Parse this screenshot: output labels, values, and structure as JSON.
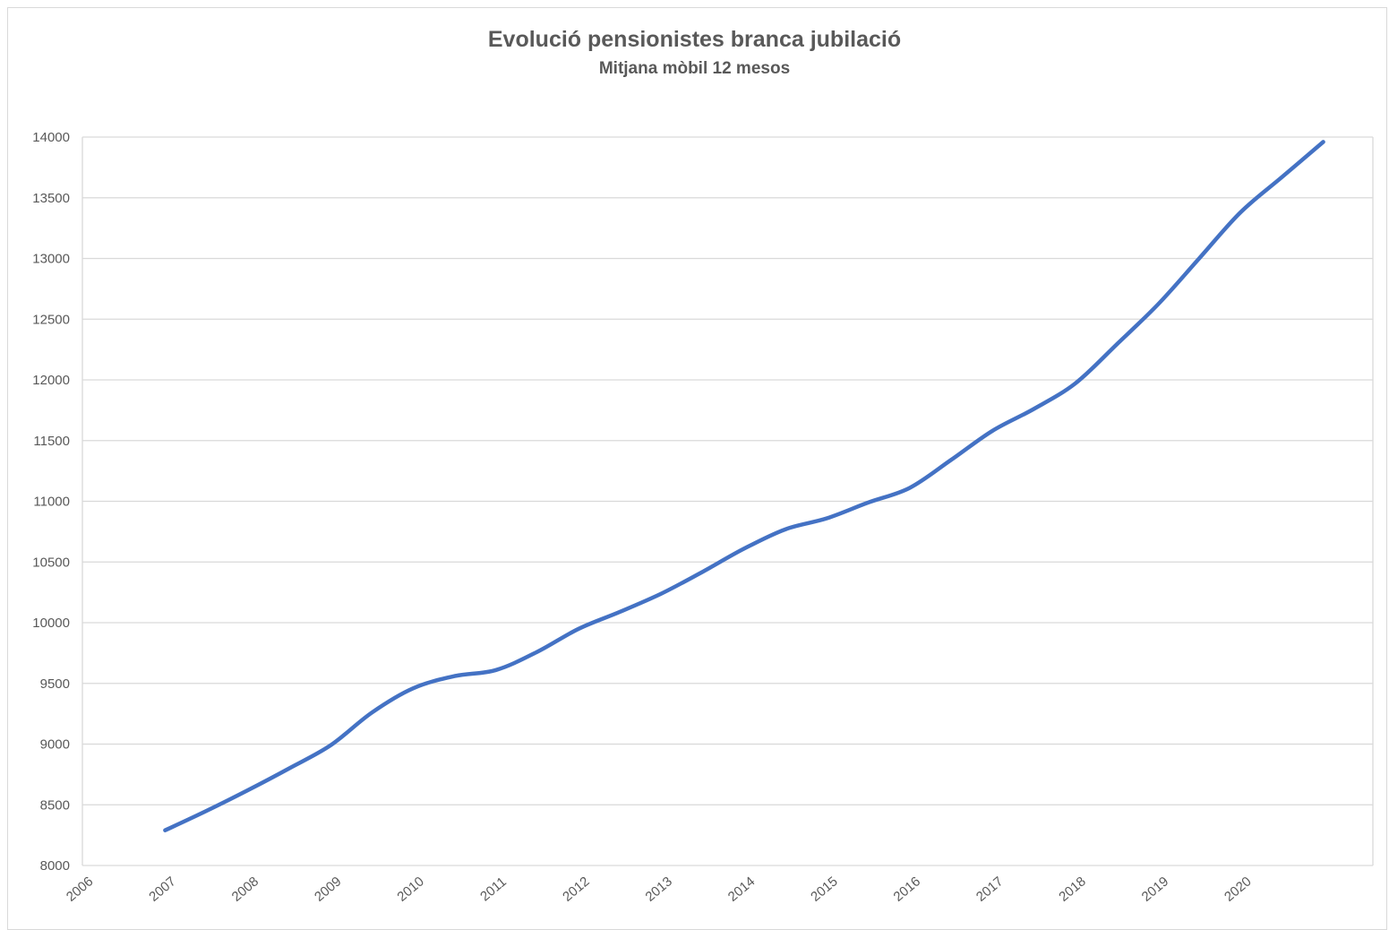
{
  "chart_data": {
    "type": "line",
    "title": "Evolució pensionistes branca jubilació",
    "subtitle": "Mitjana mòbil 12 mesos",
    "xlabel": "",
    "ylabel": "",
    "xlim": [
      2006,
      2021.6
    ],
    "ylim": [
      8000,
      14000
    ],
    "y_ticks": [
      8000,
      8500,
      9000,
      9500,
      10000,
      10500,
      11000,
      11500,
      12000,
      12500,
      13000,
      13500,
      14000
    ],
    "x_ticks": [
      "2006",
      "2007",
      "2008",
      "2009",
      "2010",
      "2011",
      "2012",
      "2013",
      "2014",
      "2015",
      "2016",
      "2017",
      "2018",
      "2019",
      "2020"
    ],
    "grid": true,
    "legend": "none",
    "line_color": "#4472c4",
    "series": [
      {
        "x": [
          2007.0,
          2007.5,
          2008.0,
          2008.5,
          2009.0,
          2009.5,
          2010.0,
          2010.5,
          2011.0,
          2011.5,
          2012.0,
          2012.5,
          2013.0,
          2013.5,
          2014.0,
          2014.5,
          2015.0,
          2015.5,
          2016.0,
          2016.5,
          2017.0,
          2017.5,
          2018.0,
          2018.5,
          2019.0,
          2019.5,
          2020.0,
          2020.5,
          2021.0
        ],
        "values": [
          8290,
          8450,
          8620,
          8800,
          8990,
          9260,
          9460,
          9560,
          9610,
          9760,
          9950,
          10090,
          10240,
          10420,
          10610,
          10770,
          10860,
          10990,
          11110,
          11340,
          11580,
          11760,
          11970,
          12290,
          12620,
          13000,
          13380,
          13670,
          13960
        ]
      }
    ]
  }
}
